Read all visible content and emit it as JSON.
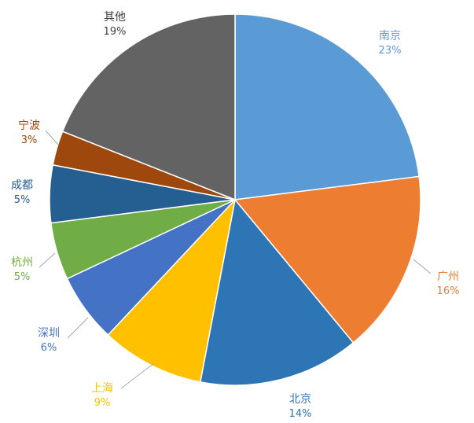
{
  "chart_data": {
    "type": "pie",
    "slices": [
      {
        "name": "南京",
        "value": 23,
        "label": "23%",
        "color": "#5b9bd5"
      },
      {
        "name": "广州",
        "value": 16,
        "label": "16%",
        "color": "#ed7d31"
      },
      {
        "name": "北京",
        "value": 14,
        "label": "14%",
        "color": "#2e75b6"
      },
      {
        "name": "上海",
        "value": 9,
        "label": "9%",
        "color": "#ffc000"
      },
      {
        "name": "深圳",
        "value": 6,
        "label": "6%",
        "color": "#4472c4"
      },
      {
        "name": "杭州",
        "value": 5,
        "label": "5%",
        "color": "#70ad47"
      },
      {
        "name": "成都",
        "value": 5,
        "label": "5%",
        "color": "#255e91"
      },
      {
        "name": "宁波",
        "value": 3,
        "label": "3%",
        "color": "#9e480e"
      },
      {
        "name": "其他",
        "value": 19,
        "label": "19%",
        "color": "#636363"
      }
    ],
    "label_colors": {
      "南京": "#5b9bd5",
      "广州": "#ed7d31",
      "北京": "#2e75b6",
      "上海": "#ffc000",
      "深圳": "#4472c4",
      "杭州": "#70ad47",
      "成都": "#255e91",
      "宁波": "#9e480e",
      "其他": "#404040"
    },
    "start_angle_deg": 0,
    "direction": "clockwise",
    "legend": "none"
  }
}
